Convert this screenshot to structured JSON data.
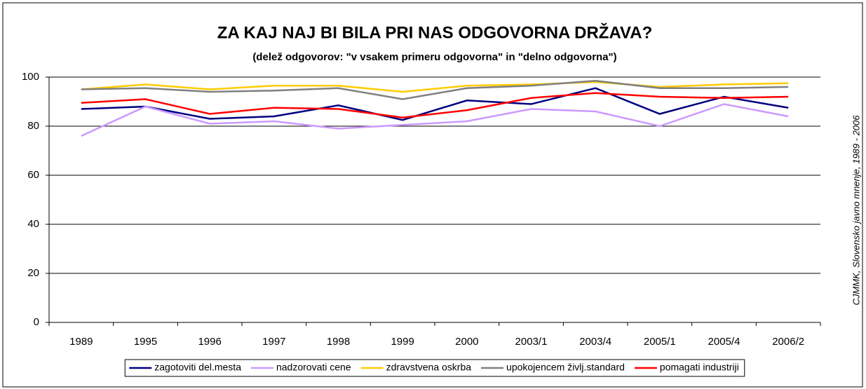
{
  "chart_data": {
    "type": "line",
    "title": "ZA KAJ NAJ BI BILA PRI NAS ODGOVORNA DRŽAVA?",
    "subtitle": "(delež odgovorov: \"v vsakem primeru odgovorna\" in \"delno odgovorna\")",
    "source": "CJMMK, Slovensko javno mnenje, 1989 - 2006",
    "categories": [
      "1989",
      "1995",
      "1996",
      "1997",
      "1998",
      "1999",
      "2000",
      "2003/1",
      "2003/4",
      "2005/1",
      "2005/4",
      "2006/2"
    ],
    "series": [
      {
        "name": "zagotoviti del.mesta",
        "color": "#000080",
        "values": [
          87,
          88,
          83,
          84,
          88.5,
          82.5,
          90.5,
          89,
          95.5,
          85,
          92,
          87.5
        ]
      },
      {
        "name": "nadzorovati cene",
        "color": "#cc99ff",
        "values": [
          76,
          88,
          81,
          82,
          79,
          80.5,
          82,
          87,
          86,
          80,
          89,
          84
        ]
      },
      {
        "name": "zdravstvena oskrba",
        "color": "#ffcc00",
        "values": [
          95,
          97,
          95,
          96.5,
          96.5,
          94,
          96.5,
          97,
          98,
          96,
          97,
          97.5
        ]
      },
      {
        "name": "upokojencem življ.standard",
        "color": "#808080",
        "values": [
          95,
          95.5,
          94,
          94.5,
          95.5,
          91,
          95.5,
          96.5,
          98.5,
          95.5,
          95.5,
          96
        ]
      },
      {
        "name": "pomagati industriji",
        "color": "#ff0000",
        "values": [
          89.5,
          91,
          85,
          87.5,
          87,
          83.5,
          86.5,
          91.5,
          93.5,
          92,
          91.5,
          92
        ]
      }
    ],
    "ylim": [
      0,
      100
    ],
    "yticks": [
      0,
      20,
      40,
      60,
      80,
      100
    ],
    "grid": true,
    "legend": "bottom"
  }
}
